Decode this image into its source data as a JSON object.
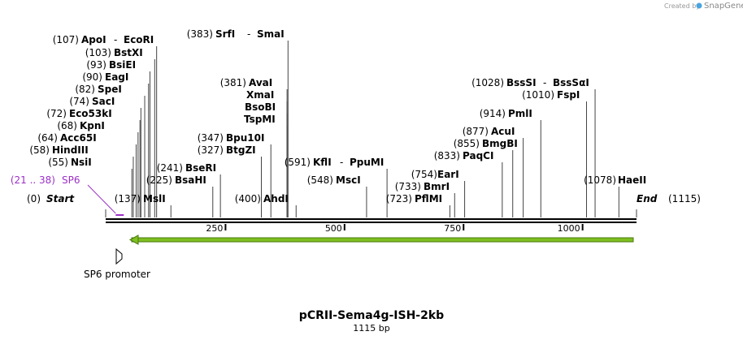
{
  "credit": {
    "text": "Created by",
    "brand": "SnapGene"
  },
  "title": "pCRII-Sema4g-ISH-2kb",
  "length_label": "1115 bp",
  "sequence_length": 1115,
  "ticks": [
    250,
    500,
    750,
    1000
  ],
  "start": {
    "num": "(0)",
    "name": "Start"
  },
  "end": {
    "num": "(1115)",
    "name": "End"
  },
  "primer": {
    "num": "(21 .. 38)",
    "name": "SP6",
    "color": "#9b30c8"
  },
  "feature": {
    "name": "SP6 promoter",
    "direction": "reverse",
    "from": 45,
    "to": 1115,
    "color": "#7fbf1f"
  },
  "sites": [
    {
      "num": "(107)",
      "name": "ApoI",
      "extra": "EcoRI",
      "pos": 107
    },
    {
      "num": "(103)",
      "name": "BstXI",
      "pos": 103
    },
    {
      "num": "(93)",
      "name": "BsiEI",
      "pos": 93
    },
    {
      "num": "(90)",
      "name": "EagI",
      "pos": 90
    },
    {
      "num": "(82)",
      "name": "SpeI",
      "pos": 82
    },
    {
      "num": "(74)",
      "name": "SacI",
      "pos": 74
    },
    {
      "num": "(72)",
      "name": "Eco53kI",
      "pos": 72
    },
    {
      "num": "(68)",
      "name": "KpnI",
      "pos": 68
    },
    {
      "num": "(64)",
      "name": "Acc65I",
      "pos": 64
    },
    {
      "num": "(58)",
      "name": "HindIII",
      "pos": 58
    },
    {
      "num": "(55)",
      "name": "NsiI",
      "pos": 55
    },
    {
      "num": "(137)",
      "name": "MslI",
      "pos": 137
    },
    {
      "num": "(225)",
      "name": "BsaHI",
      "pos": 225
    },
    {
      "num": "(241)",
      "name": "BseRI",
      "pos": 241
    },
    {
      "num": "(327)",
      "name": "BtgZI",
      "pos": 327
    },
    {
      "num": "(347)",
      "name": "Bpu10I",
      "pos": 347
    },
    {
      "num": "(383)",
      "name": "SrfI",
      "extra": "SmaI",
      "pos": 383
    },
    {
      "num": "(381)",
      "name": "AvaI",
      "pos": 381
    },
    {
      "num": "",
      "name": "XmaI",
      "pos": 381
    },
    {
      "num": "",
      "name": "BsoBI",
      "pos": 381
    },
    {
      "num": "",
      "name": "TspMI",
      "pos": 381
    },
    {
      "num": "(400)",
      "name": "AhdI",
      "pos": 400
    },
    {
      "num": "(548)",
      "name": "MscI",
      "pos": 548
    },
    {
      "num": "(591)",
      "name": "KflI",
      "extra": "PpuMI",
      "pos": 591
    },
    {
      "num": "(723)",
      "name": "PflMI",
      "pos": 723
    },
    {
      "num": "(733)",
      "name": "BmrI",
      "pos": 733
    },
    {
      "num": "(754)",
      "name": "EarI",
      "pos": 754
    },
    {
      "num": "(833)",
      "name": "PaqCI",
      "pos": 833
    },
    {
      "num": "(855)",
      "name": "BmgBI",
      "pos": 855
    },
    {
      "num": "(877)",
      "name": "AcuI",
      "pos": 877
    },
    {
      "num": "(914)",
      "name": "PmlI",
      "pos": 914
    },
    {
      "num": "(1010)",
      "name": "FspI",
      "pos": 1010
    },
    {
      "num": "(1028)",
      "name": "BssSI",
      "extra": "BssSαI",
      "pos": 1028
    },
    {
      "num": "(1078)",
      "name": "HaeII",
      "pos": 1078
    }
  ]
}
